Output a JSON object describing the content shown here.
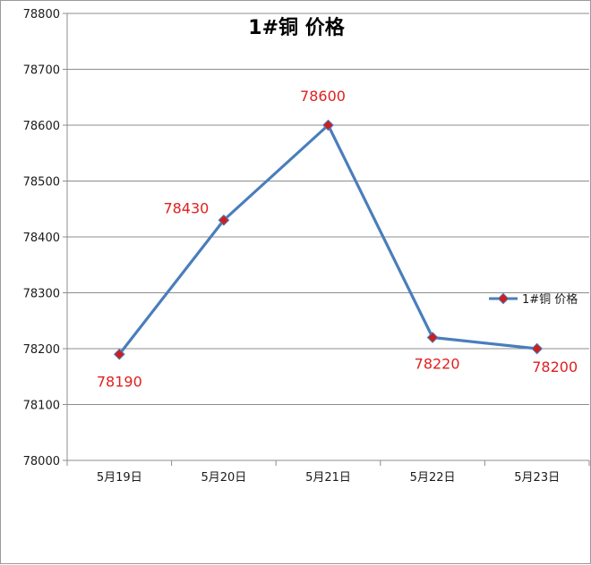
{
  "chart_data": {
    "type": "line",
    "title": "1#铜 价格",
    "categories": [
      "5月19日",
      "5月20日",
      "5月21日",
      "5月22日",
      "5月23日"
    ],
    "series": [
      {
        "name": "1#铜 价格",
        "values": [
          78190,
          78430,
          78600,
          78220,
          78200
        ]
      }
    ],
    "ylim": [
      78000,
      78800
    ],
    "y_ticks": [
      "78000",
      "78100",
      "78200",
      "78300",
      "78400",
      "78500",
      "78600",
      "78700",
      "78800"
    ],
    "data_labels": [
      "78190",
      "78430",
      "78600",
      "78220",
      "78200"
    ],
    "grid": true,
    "legend_position": "right",
    "line_color": "#4a7ebb",
    "marker_color": "#cc1f1f",
    "label_color": "#e02020"
  }
}
